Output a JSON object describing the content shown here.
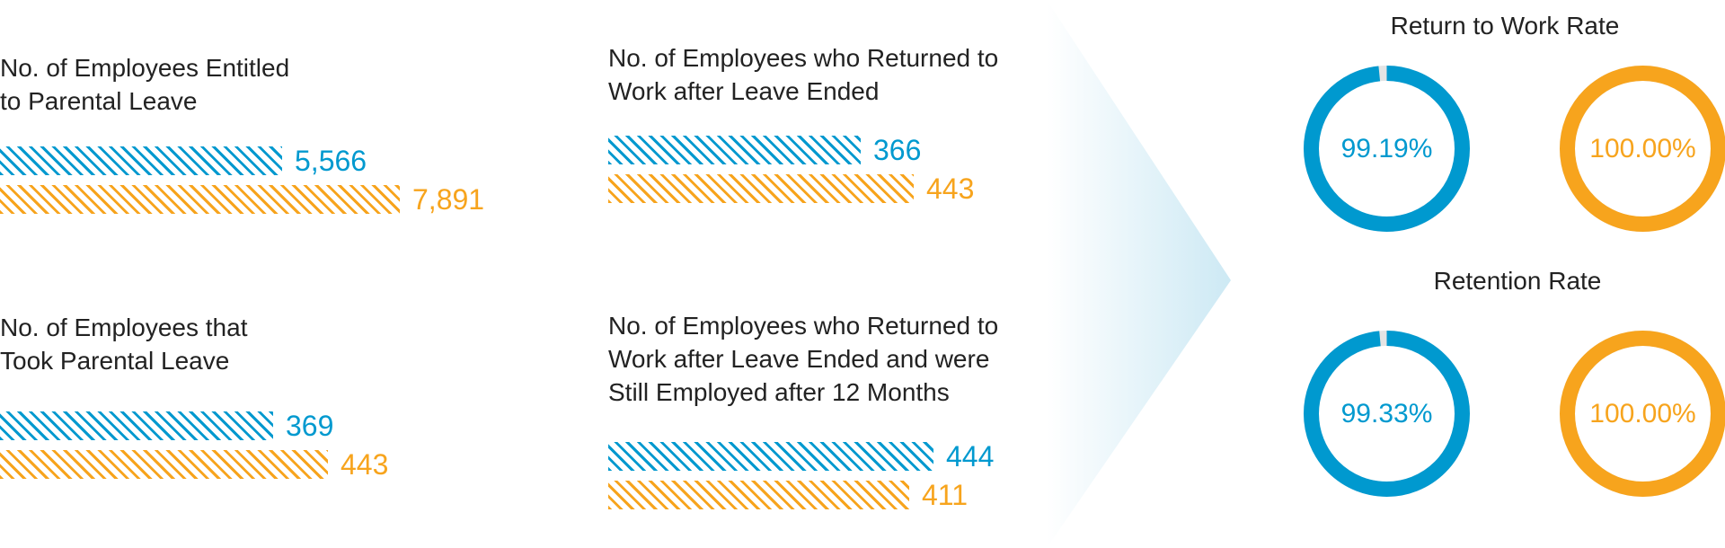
{
  "chart_data": [
    {
      "type": "bar",
      "title": "No. of Employees Entitled\nto Parental Leave",
      "values": [
        5566,
        7891
      ],
      "labels": [
        "5,566",
        "7,891"
      ],
      "colors": [
        "#0099cf",
        "#f7a41d"
      ]
    },
    {
      "type": "bar",
      "title": "No. of Employees that\nTook Parental Leave",
      "values": [
        369,
        443
      ],
      "labels": [
        "369",
        "443"
      ],
      "colors": [
        "#0099cf",
        "#f7a41d"
      ]
    },
    {
      "type": "bar",
      "title": "No. of Employees who Returned to\nWork after Leave Ended",
      "values": [
        366,
        443
      ],
      "labels": [
        "366",
        "443"
      ],
      "colors": [
        "#0099cf",
        "#f7a41d"
      ]
    },
    {
      "type": "bar",
      "title": "No. of Employees who Returned to\nWork after Leave Ended and were\nStill Employed after 12 Months",
      "values": [
        444,
        411
      ],
      "labels": [
        "444",
        "411"
      ],
      "colors": [
        "#0099cf",
        "#f7a41d"
      ]
    }
  ],
  "rates": [
    {
      "title": "Return to Work Rate",
      "donuts": [
        {
          "value": 99.19,
          "label": "99.19%",
          "color": "#0099cf"
        },
        {
          "value": 100.0,
          "label": "100.00%",
          "color": "#f7a41d"
        }
      ]
    },
    {
      "title": "Retention Rate",
      "donuts": [
        {
          "value": 99.33,
          "label": "99.33%",
          "color": "#0099cf"
        },
        {
          "value": 100.0,
          "label": "100.00%",
          "color": "#f7a41d"
        }
      ]
    }
  ],
  "colors": {
    "blue": "#0099cf",
    "orange": "#f7a41d",
    "track": "#e4e4e4"
  }
}
